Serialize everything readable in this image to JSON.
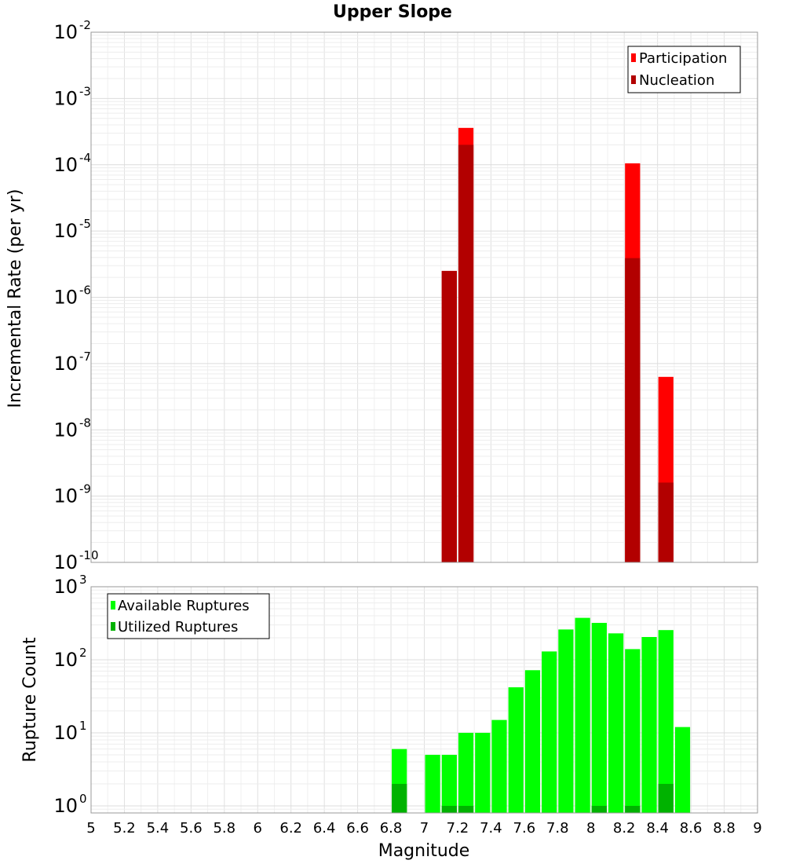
{
  "chart_data": [
    {
      "type": "bar",
      "title": "Upper Slope",
      "xlabel": "",
      "ylabel": "Incremental Rate (per yr)",
      "yscale": "log",
      "ylim": [
        1e-10,
        0.01
      ],
      "xlim": [
        5,
        9
      ],
      "bar_width": 0.1,
      "grid": true,
      "legend_position": "top-right",
      "y_tick_bases": [
        "10",
        "10",
        "10",
        "10",
        "10",
        "10",
        "10",
        "10",
        "10"
      ],
      "y_tick_exponents": [
        "-10",
        "-9",
        "-8",
        "-7",
        "-6",
        "-5",
        "-4",
        "-3",
        "-2"
      ],
      "series": [
        {
          "name": "Participation",
          "color": "#ff0000",
          "x": [
            7.15,
            7.25,
            8.25,
            8.45
          ],
          "values": [
            2.5e-06,
            0.00036,
            0.000105,
            6.3e-08
          ]
        },
        {
          "name": "Nucleation",
          "color": "#b20000",
          "x": [
            7.15,
            7.25,
            8.25,
            8.45
          ],
          "values": [
            2.5e-06,
            0.0002,
            3.9e-06,
            1.6e-09
          ]
        }
      ]
    },
    {
      "type": "bar",
      "title": "",
      "xlabel": "Magnitude",
      "ylabel": "Rupture Count",
      "yscale": "log",
      "ylim": [
        0.8,
        1000
      ],
      "xlim": [
        5,
        9
      ],
      "bar_width": 0.1,
      "grid": true,
      "legend_position": "top-left",
      "x_tick_labels": [
        "5",
        "5.2",
        "5.4",
        "5.6",
        "5.8",
        "6",
        "6.2",
        "6.4",
        "6.6",
        "6.8",
        "7",
        "7.2",
        "7.4",
        "7.6",
        "7.8",
        "8",
        "8.2",
        "8.4",
        "8.6",
        "8.8",
        "9"
      ],
      "y_tick_bases": [
        "10",
        "10",
        "10",
        "10"
      ],
      "y_tick_exponents": [
        "0",
        "1",
        "2",
        "3"
      ],
      "series": [
        {
          "name": "Available Ruptures",
          "color": "#00ff00",
          "x": [
            6.85,
            7.05,
            7.15,
            7.25,
            7.35,
            7.45,
            7.55,
            7.65,
            7.75,
            7.85,
            7.95,
            8.05,
            8.15,
            8.25,
            8.35,
            8.45,
            8.55
          ],
          "values": [
            6,
            5,
            5,
            10,
            10,
            15,
            42,
            72,
            130,
            260,
            375,
            320,
            230,
            140,
            205,
            255,
            12
          ]
        },
        {
          "name": "Utilized Ruptures",
          "color": "#00b200",
          "x": [
            6.85,
            7.15,
            7.25,
            8.05,
            8.25,
            8.45
          ],
          "values": [
            2,
            1,
            1,
            1,
            1,
            2
          ]
        }
      ]
    }
  ]
}
